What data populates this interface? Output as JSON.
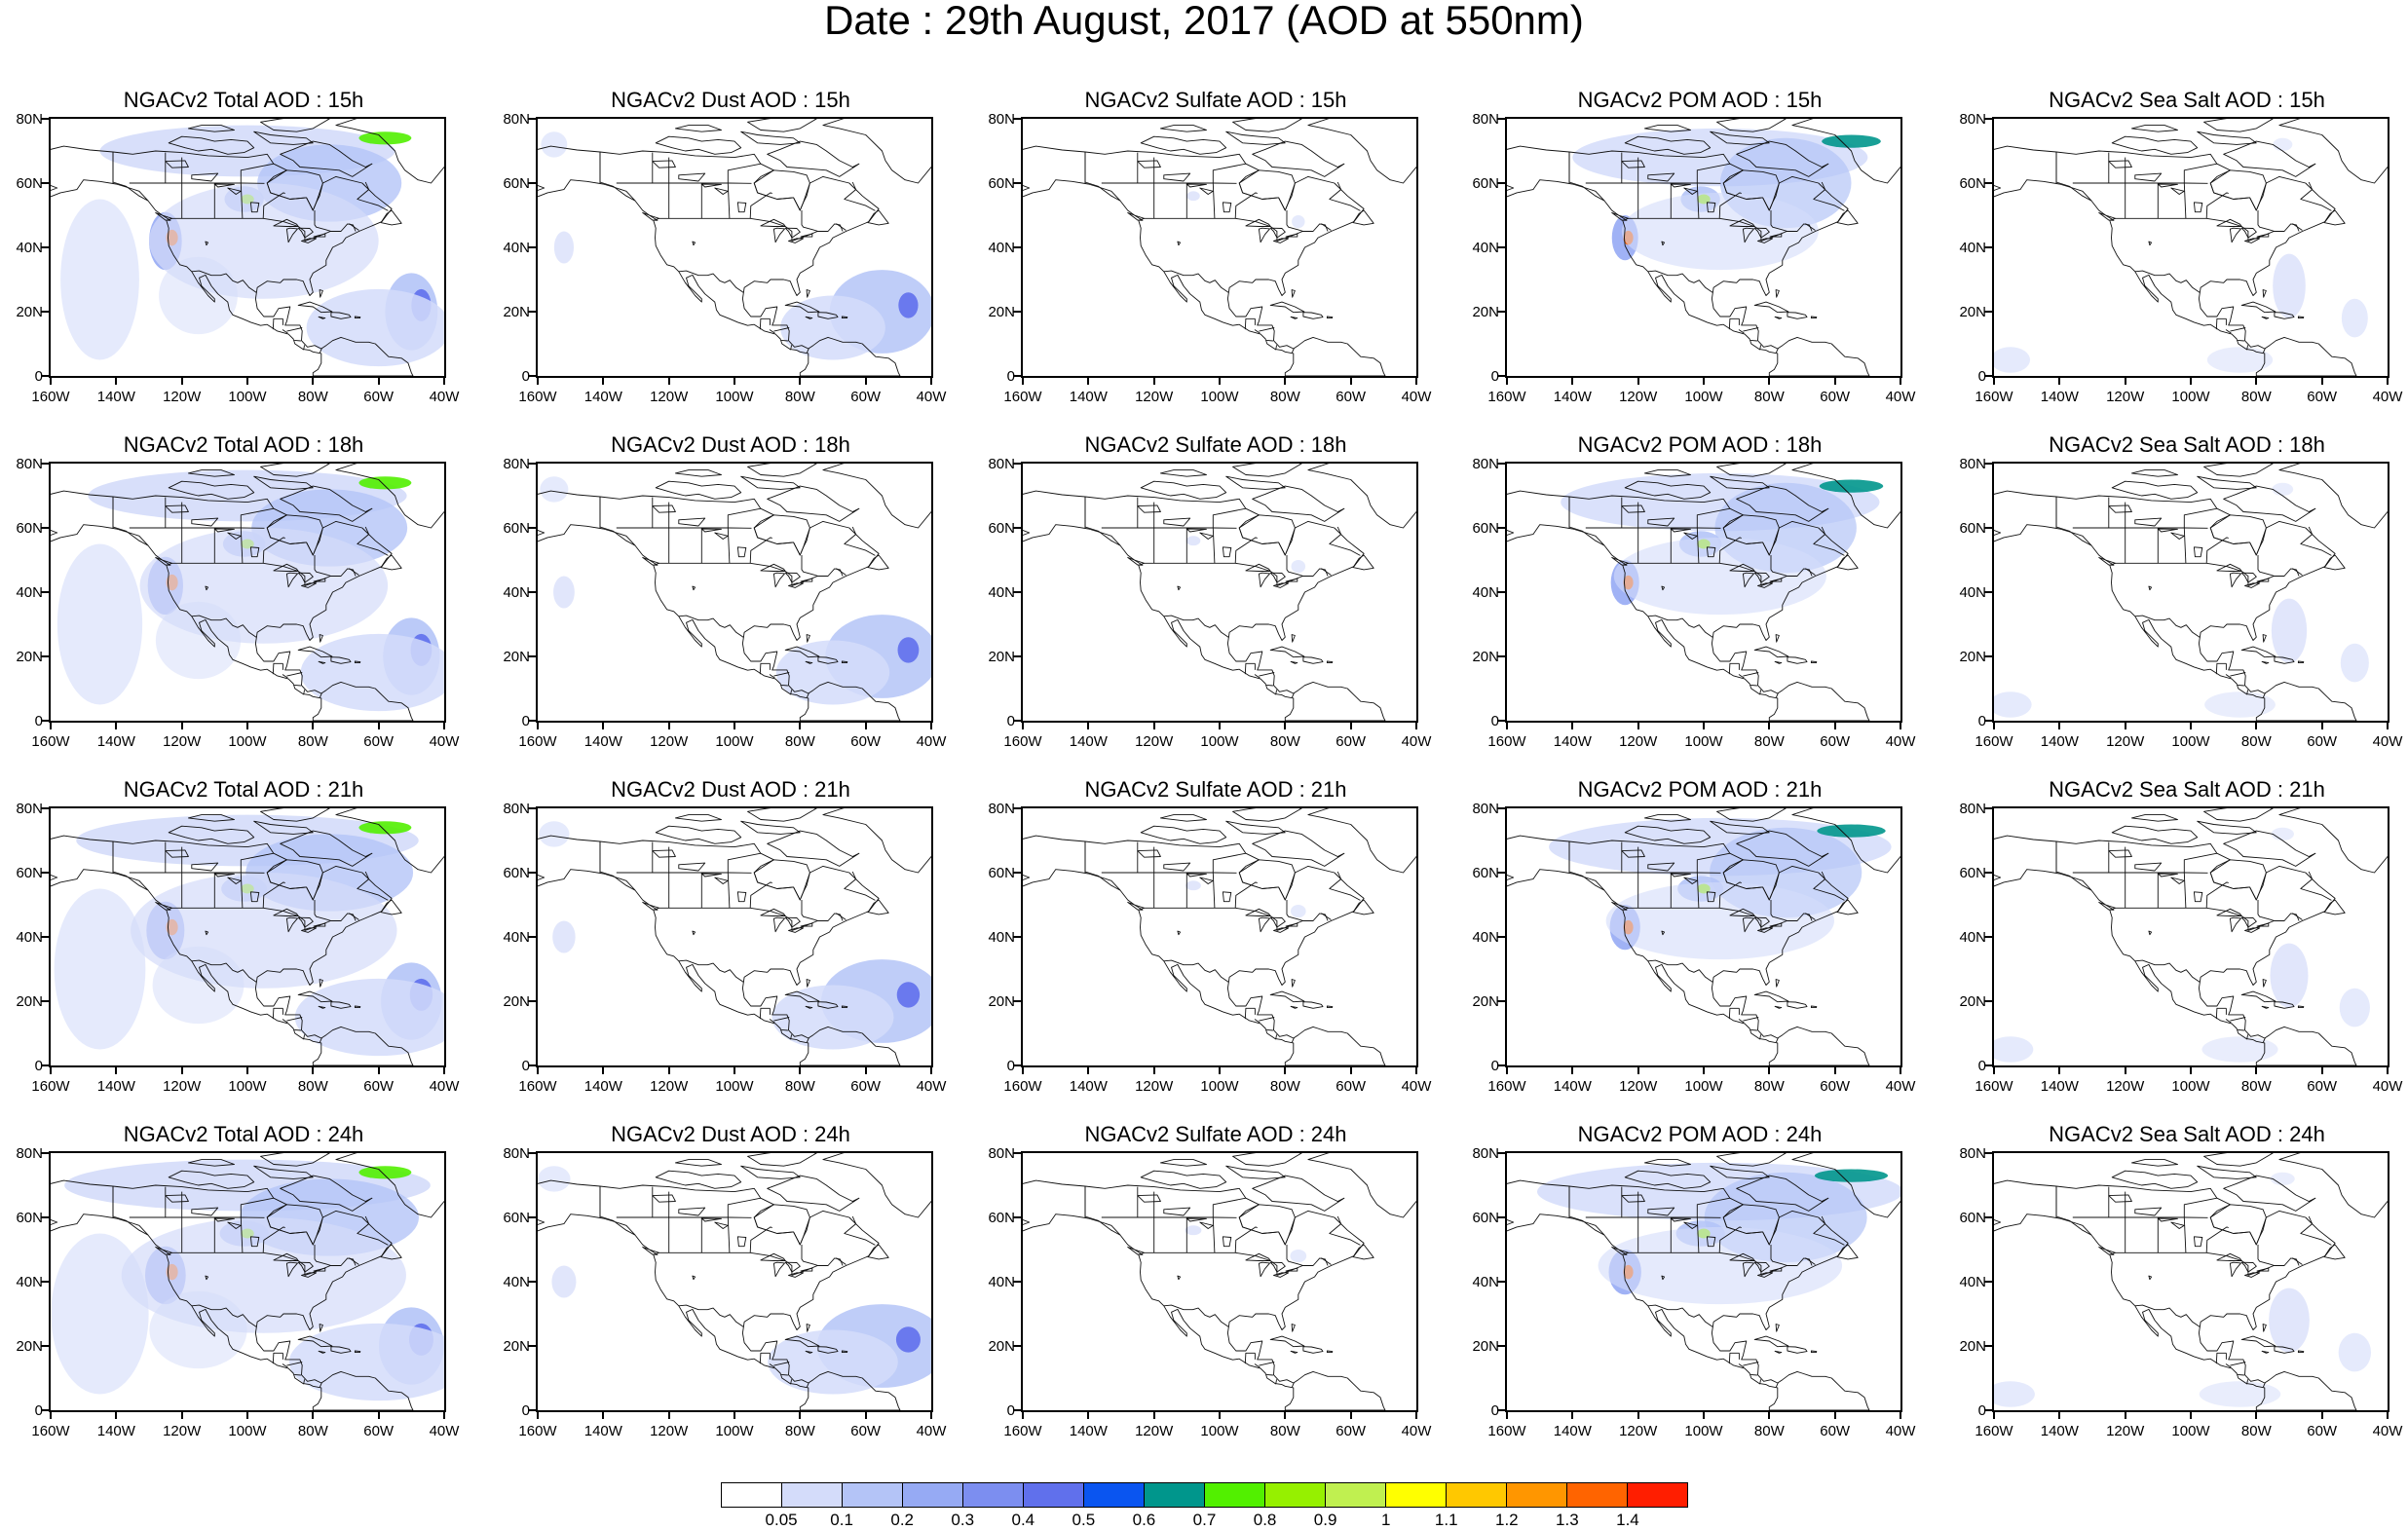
{
  "main_title": "Date : 29th August, 2017 (AOD at 550nm)",
  "y_labels": [
    "80N",
    "60N",
    "40N",
    "20N",
    "0"
  ],
  "x_labels": [
    "160W",
    "140W",
    "120W",
    "100W",
    "80W",
    "60W",
    "40W"
  ],
  "panel_titles": [
    [
      "NGACv2 Total AOD : 15h",
      "NGACv2 Dust AOD : 15h",
      "NGACv2 Sulfate AOD : 15h",
      "NGACv2 POM AOD : 15h",
      "NGACv2 Sea Salt AOD : 15h"
    ],
    [
      "NGACv2 Total AOD : 18h",
      "NGACv2 Dust AOD : 18h",
      "NGACv2 Sulfate AOD : 18h",
      "NGACv2 POM AOD : 18h",
      "NGACv2 Sea Salt AOD : 18h"
    ],
    [
      "NGACv2 Total AOD : 21h",
      "NGACv2 Dust AOD : 21h",
      "NGACv2 Sulfate AOD : 21h",
      "NGACv2 POM AOD : 21h",
      "NGACv2 Sea Salt AOD : 21h"
    ],
    [
      "NGACv2 Total AOD : 24h",
      "NGACv2 Dust AOD : 24h",
      "NGACv2 Sulfate AOD : 24h",
      "NGACv2 POM AOD : 24h",
      "NGACv2 Sea Salt  AOD : 24h"
    ]
  ],
  "colorbar": {
    "labels": [
      "0.05",
      "0.1",
      "0.2",
      "0.3",
      "0.4",
      "0.5",
      "0.6",
      "0.7",
      "0.8",
      "0.9",
      "1",
      "1.1",
      "1.2",
      "1.3",
      "1.4"
    ],
    "colors": [
      "#ffffff",
      "#d4dcfa",
      "#b4c4f7",
      "#96aaf4",
      "#7c8ef0",
      "#6070ec",
      "#0a55f0",
      "#00968c",
      "#52f000",
      "#96f000",
      "#c0f050",
      "#ffff00",
      "#ffc800",
      "#ff9600",
      "#ff6400",
      "#ff1e00"
    ]
  },
  "map_extent": {
    "lon": [
      -160,
      -40
    ],
    "lat": [
      0,
      80
    ]
  }
}
